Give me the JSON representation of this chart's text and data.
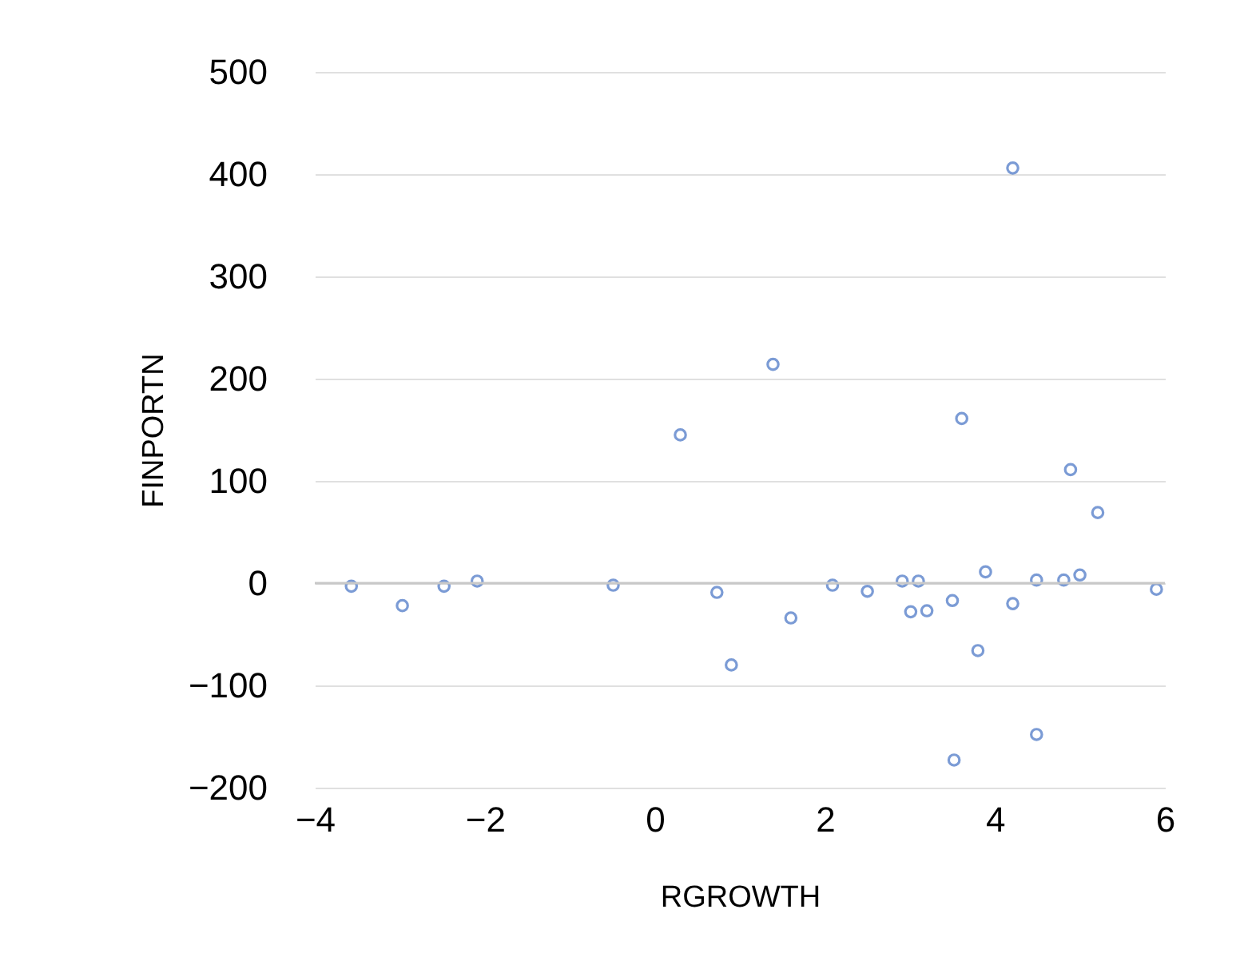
{
  "chart_data": {
    "type": "scatter",
    "xlabel": "RGROWTH",
    "ylabel": "FINPORTN",
    "x": [
      -3.57,
      -2.97,
      -2.48,
      -2.09,
      -0.49,
      0.3,
      0.73,
      0.9,
      1.39,
      1.6,
      2.09,
      2.5,
      2.91,
      3.01,
      3.1,
      3.2,
      3.5,
      3.52,
      3.61,
      3.8,
      3.89,
      4.21,
      4.21,
      4.49,
      4.49,
      4.81,
      4.89,
      5.0,
      5.21,
      5.9
    ],
    "series": [
      {
        "color": "#4472c4",
        "values": [
          -3,
          -22,
          -3,
          2,
          -2,
          145,
          -9,
          -80,
          214,
          -34,
          -2,
          -8,
          2,
          -28,
          2,
          -27,
          -17,
          -173,
          161,
          -66,
          11,
          406,
          -20,
          -148,
          3,
          3,
          111,
          8,
          69,
          -6
        ]
      }
    ],
    "xlim": [
      -4,
      6
    ],
    "xticks": [
      -4,
      -2,
      0,
      2,
      4,
      6
    ],
    "ylim": [
      -200,
      500
    ],
    "yticks": [
      -200,
      -100,
      0,
      100,
      200,
      300,
      400,
      500
    ],
    "grid": "y",
    "marker": "circle"
  }
}
